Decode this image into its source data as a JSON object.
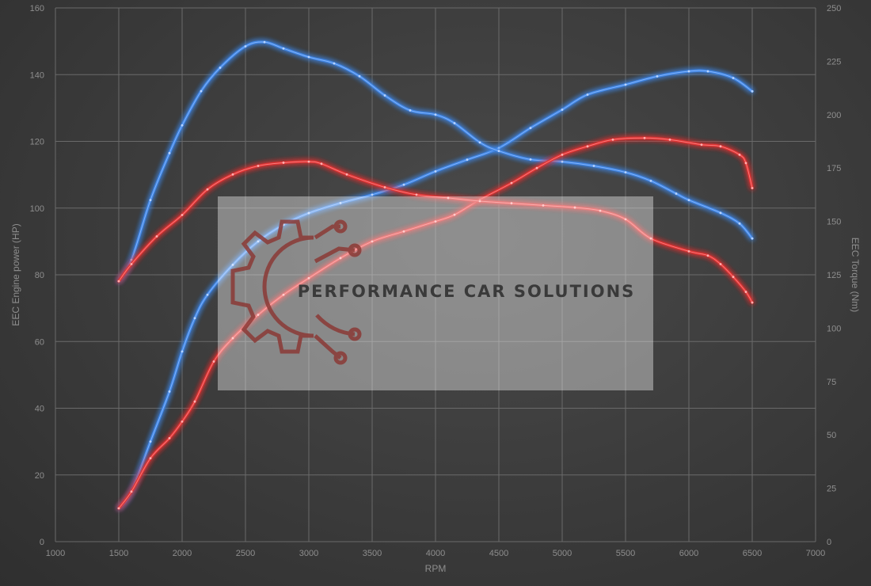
{
  "chart_data": {
    "type": "line",
    "xlabel": "RPM",
    "ylabel_left": "EEC Engine power (HP)",
    "ylabel_right": "EEC Torque (Nm)",
    "xlim": [
      1000,
      7000
    ],
    "xticks": [
      1000,
      1500,
      2000,
      2500,
      3000,
      3500,
      4000,
      4500,
      5000,
      5500,
      6000,
      6500,
      7000
    ],
    "ylim_left": [
      0,
      160
    ],
    "yticks_left": [
      0,
      20,
      40,
      60,
      80,
      100,
      120,
      140,
      160
    ],
    "ylim_right": [
      0,
      250
    ],
    "yticks_right": [
      0,
      25,
      50,
      75,
      100,
      125,
      150,
      175,
      200,
      225,
      250
    ],
    "grid": true,
    "series": [
      {
        "axis": "left",
        "quantity": "power",
        "color": "#3f86e6",
        "points": [
          [
            1500,
            10
          ],
          [
            1600,
            15
          ],
          [
            1750,
            30
          ],
          [
            1900,
            45
          ],
          [
            2000,
            57
          ],
          [
            2100,
            67
          ],
          [
            2200,
            74
          ],
          [
            2400,
            83
          ],
          [
            2600,
            90
          ],
          [
            2800,
            95
          ],
          [
            3000,
            98.5
          ],
          [
            3250,
            101.5
          ],
          [
            3500,
            104
          ],
          [
            3750,
            107
          ],
          [
            4000,
            111
          ],
          [
            4250,
            114.5
          ],
          [
            4500,
            118
          ],
          [
            4750,
            124
          ],
          [
            5000,
            129.5
          ],
          [
            5200,
            134
          ],
          [
            5500,
            137
          ],
          [
            5750,
            139.5
          ],
          [
            6000,
            141
          ],
          [
            6150,
            141
          ],
          [
            6350,
            139
          ],
          [
            6500,
            135
          ]
        ]
      },
      {
        "axis": "right",
        "quantity": "torque",
        "color": "#3f86e6",
        "points": [
          [
            1500,
            122
          ],
          [
            1600,
            132
          ],
          [
            1750,
            160
          ],
          [
            1900,
            182
          ],
          [
            2000,
            195
          ],
          [
            2150,
            211
          ],
          [
            2300,
            222
          ],
          [
            2500,
            232
          ],
          [
            2650,
            234
          ],
          [
            2800,
            231
          ],
          [
            3000,
            227
          ],
          [
            3200,
            224
          ],
          [
            3400,
            218
          ],
          [
            3600,
            209
          ],
          [
            3800,
            202
          ],
          [
            4000,
            200
          ],
          [
            4150,
            196
          ],
          [
            4350,
            187
          ],
          [
            4500,
            183
          ],
          [
            4750,
            179
          ],
          [
            5000,
            178
          ],
          [
            5250,
            176
          ],
          [
            5500,
            173
          ],
          [
            5700,
            169
          ],
          [
            5900,
            163
          ],
          [
            6000,
            160
          ],
          [
            6250,
            154
          ],
          [
            6400,
            149
          ],
          [
            6500,
            142
          ]
        ]
      },
      {
        "axis": "left",
        "quantity": "power",
        "color": "#e03232",
        "points": [
          [
            1500,
            10
          ],
          [
            1600,
            15
          ],
          [
            1750,
            25
          ],
          [
            1900,
            31
          ],
          [
            2000,
            36
          ],
          [
            2100,
            42
          ],
          [
            2250,
            54
          ],
          [
            2400,
            61
          ],
          [
            2600,
            68
          ],
          [
            2800,
            74
          ],
          [
            3000,
            79
          ],
          [
            3250,
            85
          ],
          [
            3500,
            90
          ],
          [
            3750,
            93
          ],
          [
            4000,
            96
          ],
          [
            4150,
            98
          ],
          [
            4350,
            102.5
          ],
          [
            4600,
            107.5
          ],
          [
            4800,
            112
          ],
          [
            5000,
            116
          ],
          [
            5200,
            118.5
          ],
          [
            5400,
            120.5
          ],
          [
            5650,
            121
          ],
          [
            5850,
            120.5
          ],
          [
            6100,
            119
          ],
          [
            6250,
            118.5
          ],
          [
            6400,
            116
          ],
          [
            6450,
            113.5
          ],
          [
            6500,
            106
          ]
        ]
      },
      {
        "axis": "right",
        "quantity": "torque",
        "color": "#e03232",
        "points": [
          [
            1500,
            122
          ],
          [
            1600,
            130
          ],
          [
            1800,
            143
          ],
          [
            2000,
            153
          ],
          [
            2200,
            165
          ],
          [
            2400,
            172
          ],
          [
            2600,
            176
          ],
          [
            2800,
            177.5
          ],
          [
            3000,
            178
          ],
          [
            3100,
            177
          ],
          [
            3300,
            172
          ],
          [
            3600,
            166
          ],
          [
            3850,
            162.5
          ],
          [
            4100,
            161
          ],
          [
            4350,
            159.5
          ],
          [
            4600,
            158.5
          ],
          [
            4850,
            157.5
          ],
          [
            5100,
            156.5
          ],
          [
            5300,
            155
          ],
          [
            5500,
            151
          ],
          [
            5700,
            142
          ],
          [
            6000,
            136
          ],
          [
            6150,
            134
          ],
          [
            6250,
            130
          ],
          [
            6350,
            124
          ],
          [
            6450,
            117
          ],
          [
            6500,
            112
          ]
        ]
      }
    ]
  },
  "watermark": {
    "text": "PERFORMANCE CAR SOLUTIONS",
    "icon": "gear-circuit-logo",
    "accent_color": "#8b3a36"
  }
}
